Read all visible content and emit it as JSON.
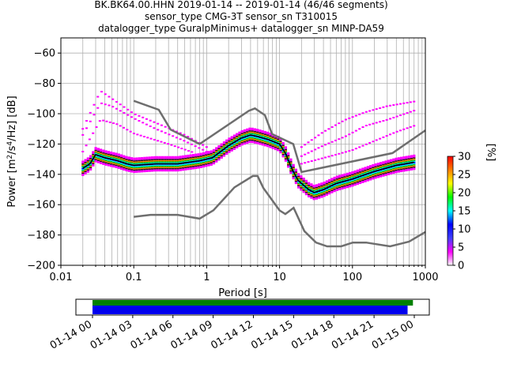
{
  "chart_data": [
    {
      "type": "heatmap",
      "title_lines": [
        "BK.BK64.00.HHN   2019-01-14 -- 2019-01-14  (46/46 segments)",
        "sensor_type CMG-3T sensor_sn T310015",
        "datalogger_type GuralpMinimus+ datalogger_sn MINP-DA59"
      ],
      "xlabel": "Period [s]",
      "ylabel_parts": [
        "Power [m",
        "2",
        "/s",
        "4",
        "/Hz] [dB]"
      ],
      "x_scale": "log",
      "xlim": [
        0.01,
        1000
      ],
      "ylim": [
        -200,
        -50
      ],
      "x_tick_labels": [
        {
          "v": 0.01,
          "label": "0.01"
        },
        {
          "v": 0.1,
          "label": "0.1"
        },
        {
          "v": 1,
          "label": "1"
        },
        {
          "v": 10,
          "label": "10"
        },
        {
          "v": 100,
          "label": "100"
        },
        {
          "v": 1000,
          "label": "1000"
        }
      ],
      "y_tick_labels": [
        {
          "v": -60,
          "label": "−60"
        },
        {
          "v": -80,
          "label": "−80"
        },
        {
          "v": -100,
          "label": "−100"
        },
        {
          "v": -120,
          "label": "−120"
        },
        {
          "v": -140,
          "label": "−140"
        },
        {
          "v": -160,
          "label": "−160"
        },
        {
          "v": -180,
          "label": "−180"
        },
        {
          "v": -200,
          "label": "−200"
        }
      ],
      "grid": true,
      "noise_models": {
        "high": [
          [
            0.1,
            -91.5
          ],
          [
            0.22,
            -97.4
          ],
          [
            0.32,
            -110.5
          ],
          [
            0.8,
            -120
          ],
          [
            3.8,
            -98
          ],
          [
            4.6,
            -96.5
          ],
          [
            6.3,
            -101
          ],
          [
            7.9,
            -113.5
          ],
          [
            15.4,
            -120
          ],
          [
            20,
            -138.5
          ],
          [
            354,
            -126
          ],
          [
            1000,
            -111
          ]
        ],
        "low": [
          [
            0.1,
            -168
          ],
          [
            0.17,
            -166.7
          ],
          [
            0.4,
            -166.7
          ],
          [
            0.8,
            -169.2
          ],
          [
            1.24,
            -163.7
          ],
          [
            2.4,
            -148.6
          ],
          [
            4.3,
            -141.1
          ],
          [
            5,
            -141.1
          ],
          [
            6,
            -149
          ],
          [
            10,
            -163.8
          ],
          [
            12,
            -166.2
          ],
          [
            15.6,
            -162.1
          ],
          [
            21.9,
            -177.5
          ],
          [
            31.6,
            -185
          ],
          [
            45,
            -187.5
          ],
          [
            70,
            -187.5
          ],
          [
            101,
            -185
          ],
          [
            154,
            -185
          ],
          [
            328,
            -187.5
          ],
          [
            600,
            -184.4
          ],
          [
            1000,
            -178
          ]
        ]
      },
      "psd_trend": [
        [
          0.02,
          -136
        ],
        [
          0.025,
          -133
        ],
        [
          0.03,
          -127
        ],
        [
          0.04,
          -129
        ],
        [
          0.06,
          -131
        ],
        [
          0.08,
          -133
        ],
        [
          0.1,
          -134
        ],
        [
          0.2,
          -133
        ],
        [
          0.4,
          -133
        ],
        [
          0.8,
          -131
        ],
        [
          1.2,
          -129
        ],
        [
          2,
          -121
        ],
        [
          3,
          -116
        ],
        [
          4,
          -114
        ],
        [
          5,
          -115
        ],
        [
          7,
          -117
        ],
        [
          10,
          -120
        ],
        [
          12,
          -126
        ],
        [
          15,
          -137
        ],
        [
          18,
          -144
        ],
        [
          25,
          -150
        ],
        [
          30,
          -152
        ],
        [
          40,
          -150
        ],
        [
          60,
          -146
        ],
        [
          100,
          -143
        ],
        [
          200,
          -138
        ],
        [
          400,
          -134
        ],
        [
          700,
          -132
        ]
      ],
      "spur_lines": [
        [
          [
            0.02,
            -114
          ],
          [
            0.035,
            -93
          ],
          [
            0.05,
            -95
          ],
          [
            0.1,
            -103
          ],
          [
            0.2,
            -110
          ],
          [
            0.5,
            -118
          ],
          [
            1,
            -125
          ]
        ],
        [
          [
            0.02,
            -110
          ],
          [
            0.035,
            -85
          ],
          [
            0.05,
            -90
          ],
          [
            0.1,
            -100
          ],
          [
            0.2,
            -106
          ],
          [
            0.5,
            -114
          ],
          [
            1,
            -122
          ]
        ],
        [
          [
            0.02,
            -125
          ],
          [
            0.035,
            -104
          ],
          [
            0.06,
            -107
          ],
          [
            0.1,
            -113
          ],
          [
            0.3,
            -120
          ],
          [
            0.7,
            -126
          ]
        ],
        [
          [
            20,
            -122
          ],
          [
            40,
            -112
          ],
          [
            80,
            -104
          ],
          [
            150,
            -99
          ],
          [
            300,
            -95
          ],
          [
            700,
            -92
          ]
        ],
        [
          [
            20,
            -128
          ],
          [
            40,
            -121
          ],
          [
            80,
            -115
          ],
          [
            150,
            -108
          ],
          [
            300,
            -104
          ],
          [
            700,
            -98
          ]
        ],
        [
          [
            20,
            -133
          ],
          [
            50,
            -128
          ],
          [
            100,
            -124
          ],
          [
            200,
            -118
          ],
          [
            400,
            -112
          ],
          [
            700,
            -108
          ]
        ]
      ],
      "colorbar": {
        "label": "[%]",
        "range": [
          0,
          30
        ],
        "ticks": [
          {
            "v": 0,
            "label": "0"
          },
          {
            "v": 5,
            "label": "5"
          },
          {
            "v": 10,
            "label": "10"
          },
          {
            "v": 15,
            "label": "15"
          },
          {
            "v": 20,
            "label": "20"
          },
          {
            "v": 25,
            "label": "25"
          },
          {
            "v": 30,
            "label": "30"
          }
        ],
        "colors": [
          "#ffffff",
          "#ff00ff",
          "#4040ff",
          "#0000ff",
          "#00ffff",
          "#00ff00",
          "#ffff00",
          "#ff8000",
          "#ff0000"
        ]
      }
    },
    {
      "type": "timeline",
      "x_tick_labels": [
        "01-14 00",
        "01-14 03",
        "01-14 06",
        "01-14 09",
        "01-14 12",
        "01-14 15",
        "01-14 18",
        "01-14 21",
        "01-15 00"
      ],
      "green_bar": {
        "start_hours": 0,
        "end_hours": 23.9
      },
      "blue_bar": {
        "start_hours": 0,
        "end_hours": 23.5
      },
      "colors": {
        "green": "#008000",
        "blue": "#0000ee"
      }
    }
  ]
}
